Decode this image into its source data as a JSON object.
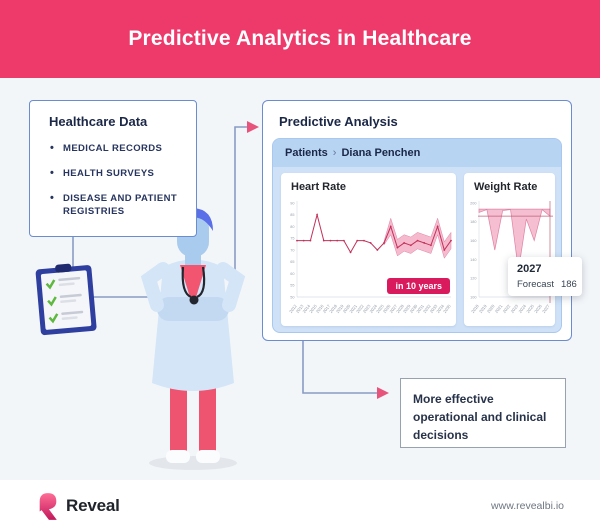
{
  "header": {
    "title": "Predictive Analytics in Healthcare"
  },
  "healthcare_data": {
    "title": "Healthcare Data",
    "items": [
      "MEDICAL RECORDS",
      "HEALTH SURVEYS",
      "DISEASE AND PATIENT REGISTRIES"
    ]
  },
  "predictive_analysis": {
    "title": "Predictive Analysis",
    "breadcrumb": {
      "root": "Patients",
      "separator": "›",
      "current": "Diana Penchen"
    }
  },
  "outcome_box": {
    "text": "More effective operational and clinical decisions"
  },
  "footer": {
    "brand": "Reveal",
    "url": "www.revealbi.io"
  },
  "colors": {
    "banner_pink": "#EE3A6B",
    "badge_crimson": "#D91A5D",
    "chart_line": "#C23059",
    "band_fill": "#F5B3C9",
    "panel_blue": "#CEE1F7",
    "bar_blue": "#B7D4F2",
    "box_border_blue": "#6C8CD1",
    "connector": "#8A9BC4",
    "arrow_pink": "#E8537B",
    "text_navy": "#1B2747"
  },
  "chart_data": [
    {
      "type": "line",
      "title": "Heart Rate",
      "badge": "in 10 years",
      "x": [
        2012,
        2013,
        2014,
        2015,
        2016,
        2017,
        2018,
        2019,
        2020,
        2021,
        2022,
        2023,
        2024,
        2025,
        2026,
        2027,
        2028,
        2029,
        2030,
        2031,
        2032,
        2033,
        2034,
        2035
      ],
      "values": [
        74,
        74,
        74,
        85,
        74,
        74,
        74,
        74,
        69,
        74,
        74,
        73,
        70,
        73,
        80,
        71,
        73,
        72,
        74,
        73,
        72,
        80,
        70,
        74
      ],
      "forecast_start_index": 14,
      "forecast_band_delta": 3.5,
      "ylim": [
        50,
        90
      ],
      "yticks": [
        90,
        85,
        80,
        75,
        70,
        65,
        60,
        55,
        50
      ],
      "grid": false,
      "legend": "none"
    },
    {
      "type": "area",
      "title": "Weight Rate",
      "x": [
        2018,
        2019,
        2020,
        2021,
        2022,
        2023,
        2024,
        2025,
        2026,
        2027
      ],
      "values": [
        190,
        193,
        150,
        192,
        193,
        128,
        183,
        160,
        193,
        186
      ],
      "area_top": 193.5,
      "ylim": [
        100,
        200
      ],
      "yticks": [
        200,
        180,
        160,
        140,
        120,
        100
      ],
      "crosshair": {
        "year": 2027,
        "value": 186
      },
      "tooltip": {
        "title": "2027",
        "label": "Forecast",
        "value": "186"
      },
      "grid": false,
      "legend": "none"
    }
  ]
}
